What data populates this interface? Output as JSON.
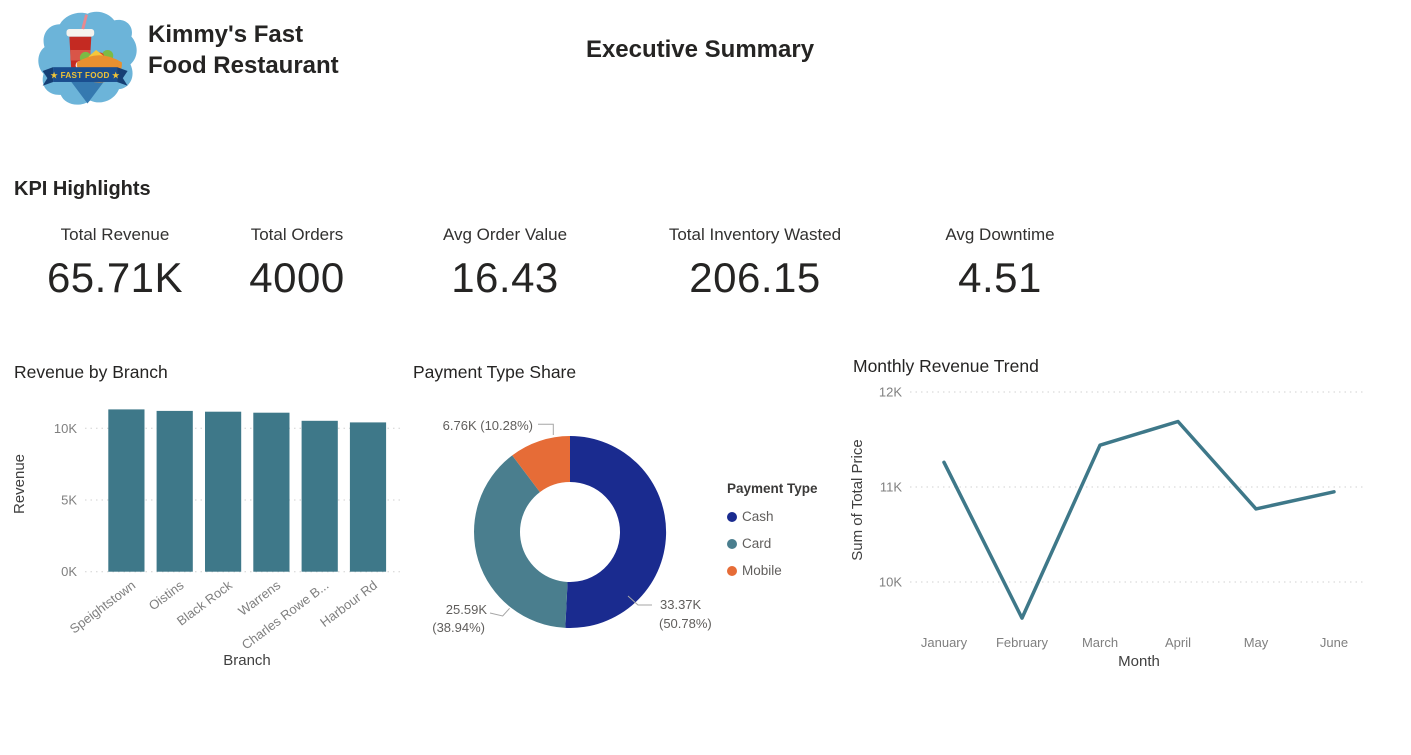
{
  "header": {
    "brand_line1": "Kimmy's Fast",
    "brand_line2": "Food Restaurant",
    "page_title": "Executive Summary",
    "logo_banner_text": "★ FAST FOOD ★"
  },
  "kpi_section": {
    "heading": "KPI Highlights",
    "cards": [
      {
        "label": "Total Revenue",
        "value": "65.71K"
      },
      {
        "label": "Total Orders",
        "value": "4000"
      },
      {
        "label": "Avg Order Value",
        "value": "16.43"
      },
      {
        "label": "Total Inventory Wasted",
        "value": "206.15"
      },
      {
        "label": "Avg Downtime",
        "value": "4.51"
      }
    ]
  },
  "colors": {
    "teal": "#3E7889",
    "navy": "#1A2B8F",
    "orange": "#E66C37",
    "card_teal": "#4A7E8E",
    "title_text": "#252423",
    "axis_tick_text": "#7F7F7F",
    "axis_title_text": "#404040",
    "callout_text": "#605E5C",
    "gridline": "#D2D2D2",
    "leader_line": "#A6A6A6"
  },
  "chart_data": [
    {
      "type": "bar",
      "title": "Revenue by Branch",
      "xlabel": "Branch",
      "ylabel": "Revenue",
      "categories": [
        "Speightstown",
        "Oistins",
        "Black Rock",
        "Warrens",
        "Charles Rowe B...",
        "Harbour Rd"
      ],
      "values": [
        11.32,
        11.21,
        11.16,
        11.09,
        10.52,
        10.41
      ],
      "unit": "K",
      "yticks": [
        {
          "v": 0,
          "label": "0K"
        },
        {
          "v": 5,
          "label": "5K"
        },
        {
          "v": 10,
          "label": "10K"
        }
      ],
      "ylim": [
        0,
        11.7
      ],
      "bar_color": "#3E7889",
      "grid": true
    },
    {
      "type": "pie",
      "title": "Payment Type Share",
      "donut": true,
      "legend_title": "Payment Type",
      "legend_position": "right",
      "slices": [
        {
          "name": "Cash",
          "value": 33.37,
          "pct": 50.78,
          "color": "#1A2B8F",
          "callout_lines": [
            "33.37K",
            "(50.78%)"
          ]
        },
        {
          "name": "Card",
          "value": 25.59,
          "pct": 38.94,
          "color": "#4A7E8E",
          "callout_lines": [
            "25.59K",
            "(38.94%)"
          ]
        },
        {
          "name": "Mobile",
          "value": 6.76,
          "pct": 10.28,
          "color": "#E66C37",
          "callout_lines": [
            "6.76K (10.28%)"
          ]
        }
      ]
    },
    {
      "type": "line",
      "title": "Monthly Revenue Trend",
      "xlabel": "Month",
      "ylabel": "Sum of Total Price",
      "x": [
        "January",
        "February",
        "March",
        "April",
        "May",
        "June"
      ],
      "values": [
        11.26,
        9.62,
        11.44,
        11.69,
        10.77,
        10.95
      ],
      "unit": "K",
      "yticks": [
        {
          "v": 10,
          "label": "10K"
        },
        {
          "v": 11,
          "label": "11K"
        },
        {
          "v": 12,
          "label": "12K"
        }
      ],
      "ylim": [
        9.4,
        12.2
      ],
      "line_color": "#3E7889",
      "grid": true
    }
  ]
}
